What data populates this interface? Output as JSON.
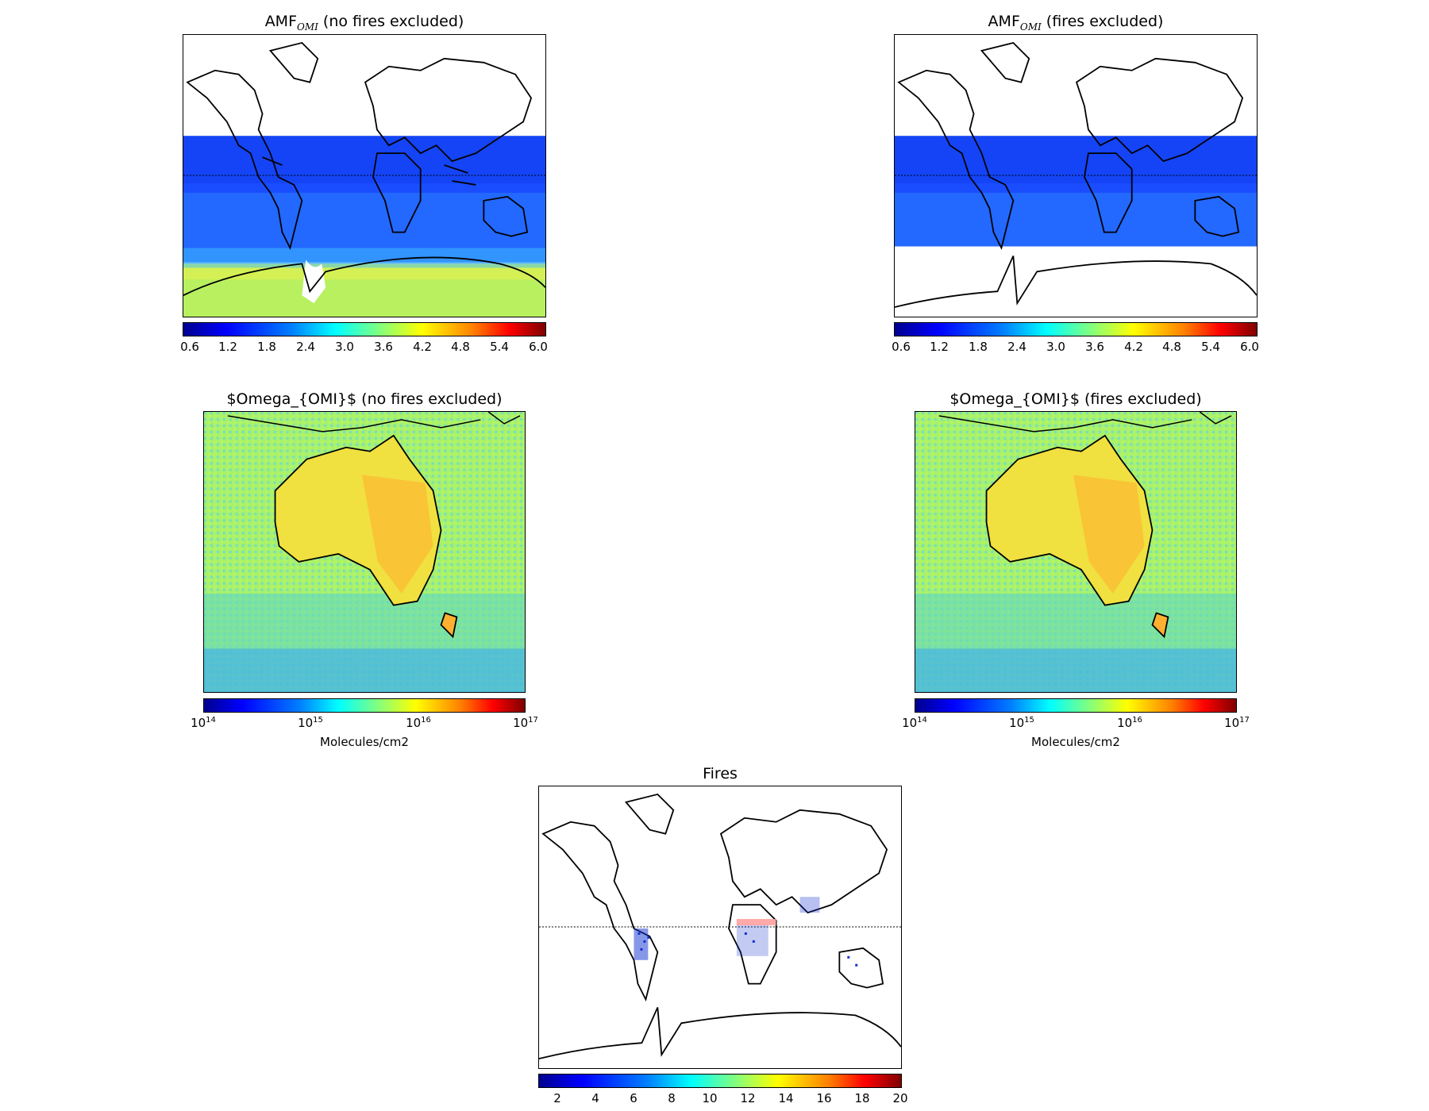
{
  "panels": [
    {
      "id": "amf-no-fires",
      "title_main": "AMF",
      "title_sub": "OMI",
      "title_rest": " (no fires excluded)",
      "colorbar_ticks": [
        "0.6",
        "1.2",
        "1.8",
        "2.4",
        "3.0",
        "3.6",
        "4.2",
        "4.8",
        "5.4",
        "6.0"
      ],
      "colorbar_label": ""
    },
    {
      "id": "amf-fires-excluded",
      "title_main": "AMF",
      "title_sub": "OMI",
      "title_rest": " (fires excluded)",
      "colorbar_ticks": [
        "0.6",
        "1.2",
        "1.8",
        "2.4",
        "3.0",
        "3.6",
        "4.2",
        "4.8",
        "5.4",
        "6.0"
      ],
      "colorbar_label": ""
    },
    {
      "id": "omega-no-fires",
      "title": "$Omega_{OMI}$ (no fires excluded)",
      "colorbar_ticks": [
        {
          "base": "10",
          "exp": "14"
        },
        {
          "base": "10",
          "exp": "15"
        },
        {
          "base": "10",
          "exp": "16"
        },
        {
          "base": "10",
          "exp": "17"
        }
      ],
      "colorbar_label": "Molecules/cm2"
    },
    {
      "id": "omega-fires-excluded",
      "title": "$Omega_{OMI}$ (fires excluded)",
      "colorbar_ticks": [
        {
          "base": "10",
          "exp": "14"
        },
        {
          "base": "10",
          "exp": "15"
        },
        {
          "base": "10",
          "exp": "16"
        },
        {
          "base": "10",
          "exp": "17"
        }
      ],
      "colorbar_label": "Molecules/cm2"
    },
    {
      "id": "fires",
      "title": "Fires",
      "colorbar_ticks": [
        "2",
        "4",
        "6",
        "8",
        "10",
        "12",
        "14",
        "16",
        "18",
        "20"
      ],
      "colorbar_label": ""
    }
  ],
  "colormap": [
    "#00008f",
    "#0000ff",
    "#0080ff",
    "#00ffff",
    "#80ff80",
    "#ffff00",
    "#ff8000",
    "#ff0000",
    "#800000"
  ]
}
